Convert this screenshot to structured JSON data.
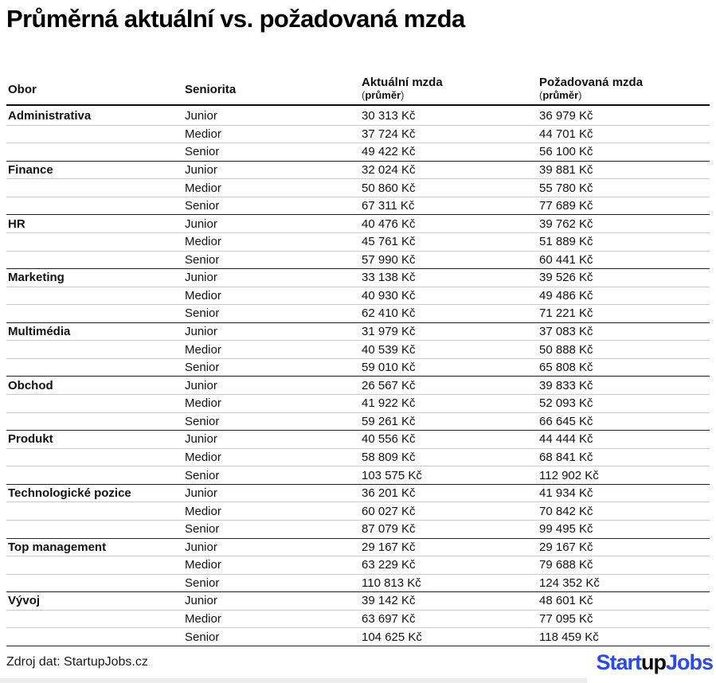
{
  "title": "Průměrná aktuální vs. požadovaná mzda",
  "header": {
    "col_obor": "Obor",
    "col_seniorita": "Seniorita",
    "col_aktualni": "Aktuální mzda",
    "col_pozadovana": "Požadovaná mzda",
    "paren_open": "(",
    "prumer": "průměr",
    "paren_close": ")"
  },
  "chart_data": {
    "type": "table",
    "title": "Průměrná aktuální vs. požadovaná mzda",
    "columns": [
      "Obor",
      "Seniorita",
      "Aktuální mzda (průměr)",
      "Požadovaná mzda (průměr)"
    ],
    "currency": "Kč",
    "groups": [
      {
        "obor": "Administrativa",
        "rows": [
          [
            "Junior",
            "30 313 Kč",
            "36 979 Kč"
          ],
          [
            "Medior",
            "37 724 Kč",
            "44 701 Kč"
          ],
          [
            "Senior",
            "49 422 Kč",
            "56 100 Kč"
          ]
        ]
      },
      {
        "obor": "Finance",
        "rows": [
          [
            "Junior",
            "32 024 Kč",
            "39 881 Kč"
          ],
          [
            "Medior",
            "50 860 Kč",
            "55 780 Kč"
          ],
          [
            "Senior",
            "67 311 Kč",
            "77 689 Kč"
          ]
        ]
      },
      {
        "obor": "HR",
        "rows": [
          [
            "Junior",
            "40 476 Kč",
            "39 762 Kč"
          ],
          [
            "Medior",
            "45 761 Kč",
            "51 889 Kč"
          ],
          [
            "Senior",
            "57 990 Kč",
            "60 441 Kč"
          ]
        ]
      },
      {
        "obor": "Marketing",
        "rows": [
          [
            "Junior",
            "33 138 Kč",
            "39 526 Kč"
          ],
          [
            "Medior",
            "40 930 Kč",
            "49 486 Kč"
          ],
          [
            "Senior",
            "62 410 Kč",
            "71 221 Kč"
          ]
        ]
      },
      {
        "obor": "Multimédia",
        "rows": [
          [
            "Junior",
            "31 979 Kč",
            "37 083 Kč"
          ],
          [
            "Medior",
            "40 539 Kč",
            "50 888 Kč"
          ],
          [
            "Senior",
            "59 010 Kč",
            "65 808 Kč"
          ]
        ]
      },
      {
        "obor": "Obchod",
        "rows": [
          [
            "Junior",
            "26 567 Kč",
            "39 833 Kč"
          ],
          [
            "Medior",
            "41 922 Kč",
            "52 093 Kč"
          ],
          [
            "Senior",
            "59 261 Kč",
            "66 645 Kč"
          ]
        ]
      },
      {
        "obor": "Produkt",
        "rows": [
          [
            "Junior",
            "40 556 Kč",
            "44 444 Kč"
          ],
          [
            "Medior",
            "58 809 Kč",
            "68 841 Kč"
          ],
          [
            "Senior",
            "103 575 Kč",
            "112 902 Kč"
          ]
        ]
      },
      {
        "obor": "Technologické pozice",
        "rows": [
          [
            "Junior",
            "36 201 Kč",
            "41 934 Kč"
          ],
          [
            "Medior",
            "60 027 Kč",
            "70 842 Kč"
          ],
          [
            "Senior",
            "87 079 Kč",
            "99 495 Kč"
          ]
        ]
      },
      {
        "obor": "Top management",
        "rows": [
          [
            "Junior",
            "29 167 Kč",
            "29 167 Kč"
          ],
          [
            "Medior",
            "63 229 Kč",
            "79 688 Kč"
          ],
          [
            "Senior",
            "110 813 Kč",
            "124 352 Kč"
          ]
        ]
      },
      {
        "obor": "Vývoj",
        "rows": [
          [
            "Junior",
            "39 142 Kč",
            "48 601 Kč"
          ],
          [
            "Medior",
            "63 697 Kč",
            "77 095 Kč"
          ],
          [
            "Senior",
            "104 625 Kč",
            "118 459 Kč"
          ]
        ]
      }
    ]
  },
  "footer": {
    "source": "Zdroj dat: StartupJobs.cz",
    "logo_start": "Start",
    "logo_up": "up",
    "logo_jobs": "Jobs"
  },
  "colors": {
    "brand_blue": "#2b49f0",
    "logo_black": "#0d0d0d",
    "row_divider": "#c9c9c9",
    "group_divider": "#1f1f1f"
  }
}
